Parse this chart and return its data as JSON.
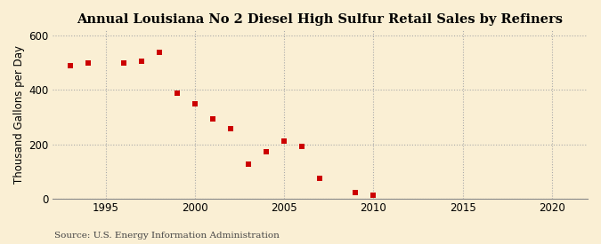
{
  "title": "Annual Louisiana No 2 Diesel High Sulfur Retail Sales by Refiners",
  "ylabel": "Thousand Gallons per Day",
  "source": "Source: U.S. Energy Information Administration",
  "background_color": "#faefd4",
  "plot_bg_color": "#faefd4",
  "marker_color": "#cc0000",
  "grid_color": "#aaaaaa",
  "spine_color": "#888888",
  "years": [
    1993,
    1994,
    1996,
    1997,
    1998,
    1999,
    2000,
    2001,
    2002,
    2003,
    2004,
    2005,
    2006,
    2007,
    2009,
    2010
  ],
  "values": [
    490,
    500,
    500,
    507,
    540,
    390,
    350,
    295,
    258,
    125,
    172,
    213,
    193,
    75,
    23,
    12
  ],
  "xlim": [
    1992,
    2022
  ],
  "ylim": [
    0,
    620
  ],
  "yticks": [
    0,
    200,
    400,
    600
  ],
  "xticks": [
    1995,
    2000,
    2005,
    2010,
    2015,
    2020
  ],
  "title_fontsize": 10.5,
  "label_fontsize": 8.5,
  "tick_fontsize": 8.5,
  "source_fontsize": 7.5
}
